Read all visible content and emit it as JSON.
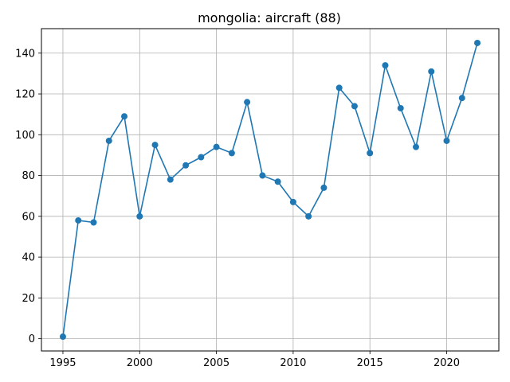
{
  "chart_data": {
    "type": "line",
    "title": "mongolia: aircraft (88)",
    "xlabel": "",
    "ylabel": "",
    "x": [
      1995,
      1996,
      1997,
      1998,
      1999,
      2000,
      2001,
      2002,
      2003,
      2004,
      2005,
      2006,
      2007,
      2008,
      2009,
      2010,
      2011,
      2012,
      2013,
      2014,
      2015,
      2016,
      2017,
      2018,
      2019,
      2020,
      2021,
      2022
    ],
    "series": [
      {
        "values": [
          1,
          58,
          57,
          97,
          109,
          60,
          95,
          78,
          85,
          89,
          94,
          91,
          116,
          80,
          77,
          67,
          60,
          74,
          123,
          114,
          91,
          134,
          113,
          94,
          131,
          97,
          118,
          145
        ],
        "color": "#1f77b4",
        "marker": "circle"
      }
    ],
    "xlim": [
      1993.6,
      2023.4
    ],
    "ylim": [
      -6,
      152
    ],
    "xticks": [
      1995,
      2000,
      2005,
      2010,
      2015,
      2020
    ],
    "yticks": [
      0,
      20,
      40,
      60,
      80,
      100,
      120,
      140
    ],
    "grid": true,
    "grid_color": "#b0b0b0"
  }
}
